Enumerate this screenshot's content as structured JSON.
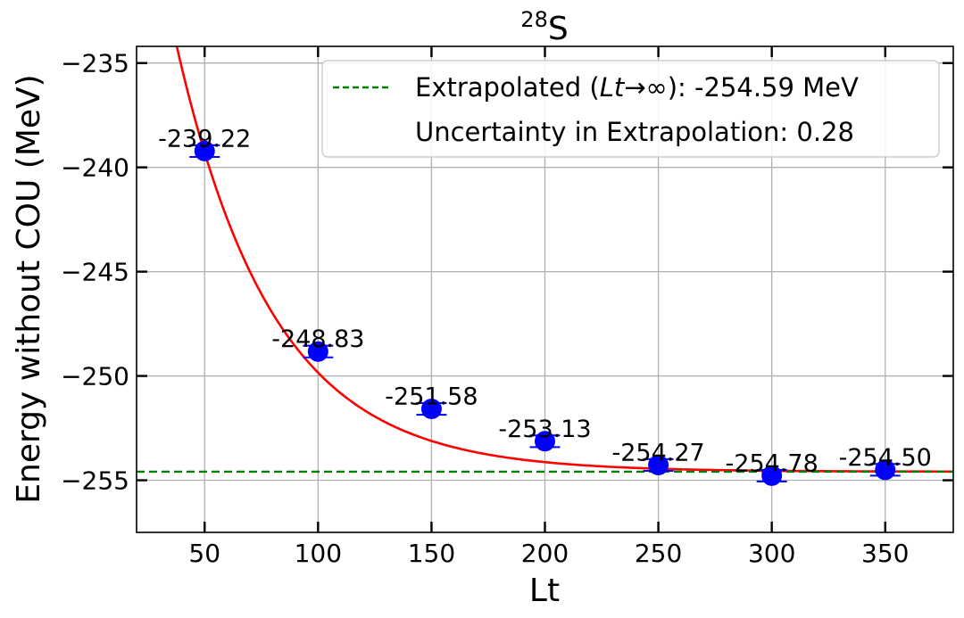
{
  "chart_data": {
    "type": "scatter",
    "title_base": "S",
    "title_superscript": "28",
    "xlabel": "Lt",
    "ylabel": "Energy without COU (MeV)",
    "xlim": [
      20,
      380
    ],
    "ylim": [
      -257.5,
      -234.2
    ],
    "xticks": [
      50,
      100,
      150,
      200,
      250,
      300,
      350
    ],
    "yticks": [
      -235,
      -240,
      -245,
      -250,
      -255
    ],
    "ytick_labels": [
      "−235",
      "−240",
      "−245",
      "−250",
      "−255"
    ],
    "grid": true,
    "legend_position": "top-right",
    "series": [
      {
        "x": [
          50,
          100,
          150,
          200,
          250,
          300,
          350
        ],
        "y": [
          -239.22,
          -248.83,
          -251.58,
          -253.13,
          -254.27,
          -254.78,
          -254.5
        ],
        "labels": [
          "-239.22",
          "-248.83",
          "-251.58",
          "-253.13",
          "-254.27",
          "-254.78",
          "-254.50"
        ],
        "yerr": 0.28,
        "color": "#0000ff"
      }
    ],
    "fit": {
      "extrapolated": -254.59,
      "amplitude": 49.3,
      "decay": 0.0234,
      "color": "#ff0000"
    },
    "reference_line": {
      "y": -254.59,
      "color": "#008000"
    },
    "legend": {
      "line1_prefix": "Extrapolated (",
      "line1_math": "Lt",
      "line1_arrow": "→",
      "line1_inf": "∞",
      "line1_suffix": "): -254.59 MeV",
      "line2": "Uncertainty in Extrapolation: 0.28"
    }
  }
}
